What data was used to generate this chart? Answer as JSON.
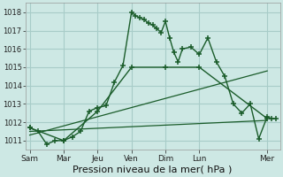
{
  "background_color": "#cde8e4",
  "grid_color": "#a8ccc8",
  "line_color": "#1a5c2a",
  "xlabel": "Pression niveau de la mer( hPa )",
  "xlabel_fontsize": 8,
  "ylim": [
    1010.5,
    1018.5
  ],
  "yticks": [
    1011,
    1012,
    1013,
    1014,
    1015,
    1016,
    1017,
    1018
  ],
  "day_labels": [
    "Sam",
    "Mar",
    "Jeu",
    "Ven",
    "Dim",
    "Lun",
    "Mer"
  ],
  "day_positions": [
    0,
    16,
    32,
    48,
    64,
    80,
    112
  ],
  "xlim": [
    -2,
    118
  ],
  "series1_x": [
    0,
    4,
    8,
    12,
    16,
    20,
    24,
    28,
    32,
    36,
    40,
    44,
    48,
    50,
    52,
    54,
    56,
    58,
    60,
    62,
    64,
    66,
    68,
    70,
    72,
    76,
    80,
    84,
    88,
    92,
    96,
    100,
    104,
    108,
    112,
    114,
    116
  ],
  "series1_y": [
    1011.7,
    1011.5,
    1010.8,
    1011.0,
    1011.0,
    1011.2,
    1011.5,
    1012.6,
    1012.8,
    1012.9,
    1014.2,
    1015.1,
    1018.0,
    1017.8,
    1017.7,
    1017.6,
    1017.4,
    1017.3,
    1017.1,
    1016.9,
    1017.5,
    1016.6,
    1015.8,
    1015.3,
    1016.0,
    1016.1,
    1015.7,
    1016.6,
    1015.3,
    1014.5,
    1013.0,
    1012.5,
    1013.0,
    1011.1,
    1012.3,
    1012.2,
    1012.2
  ],
  "series2_x": [
    0,
    16,
    32,
    48,
    64,
    80,
    112
  ],
  "series2_y": [
    1011.7,
    1011.0,
    1012.6,
    1015.0,
    1015.0,
    1015.0,
    1012.2
  ],
  "series3_x": [
    0,
    112
  ],
  "series3_y": [
    1011.3,
    1014.8
  ],
  "series4_x": [
    0,
    112
  ],
  "series4_y": [
    1011.5,
    1012.1
  ]
}
